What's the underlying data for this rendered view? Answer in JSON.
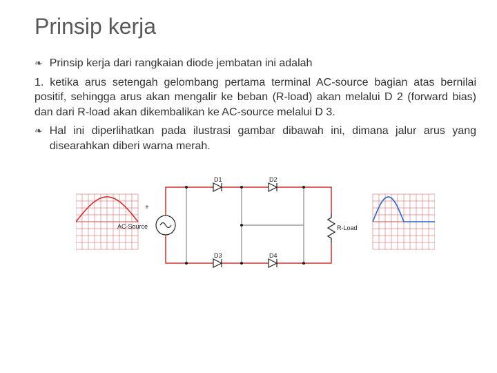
{
  "title": "Prinsip kerja",
  "bullets": {
    "b1": "Prinsip kerja dari rangkaian diode jembatan ini adalah",
    "p1": "1. ketika arus setengah gelombang pertama terminal AC-source bagian atas bernilai positif, sehingga arus akan mengalir ke beban (R-load) akan melalui D 2 (forward bias) dan dari R-load akan dikembalikan ke AC-source melalui D 3.",
    "b2": "Hal ini diperlihatkan pada ilustrasi gambar dibawah ini, dimana jalur arus yang disearahkan diberi warna merah."
  },
  "diagram": {
    "left_wave": {
      "grid_color": "#c94f4f",
      "curve_color": "#d22d2d",
      "cols": 10,
      "rows": 8
    },
    "right_wave": {
      "grid_color": "#c94f4f",
      "curve_color": "#2d62c9",
      "cols": 10,
      "rows": 8
    },
    "circuit": {
      "red": "#d22d2d",
      "black": "#222222",
      "wire_gray": "#888888",
      "labels": {
        "ac": "AC-Source",
        "plus": "+",
        "d1": "D1",
        "d2": "D2",
        "d3": "D3",
        "d4": "D4",
        "rload": "R-Load"
      }
    }
  }
}
